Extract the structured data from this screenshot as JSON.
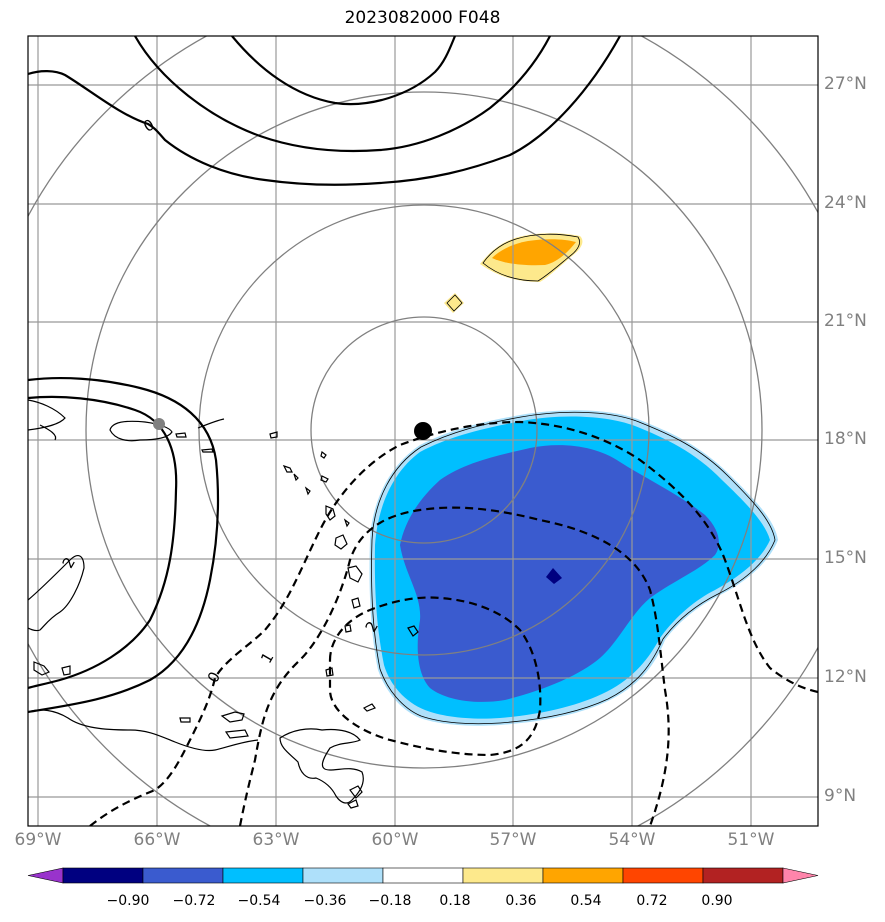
{
  "title": "2023082000 F048",
  "lat_labels": [
    "27°N",
    "24°N",
    "21°N",
    "18°N",
    "15°N",
    "12°N",
    "9°N"
  ],
  "lon_labels": [
    "69°W",
    "66°W",
    "63°W",
    "60°W",
    "57°W",
    "54°W",
    "51°W"
  ],
  "contour_labels": [
    "0",
    "2",
    "1",
    "2",
    "0"
  ],
  "colorbar": {
    "ticks": [
      "−0.90",
      "−0.72",
      "−0.54",
      "−0.36",
      "−0.18",
      "0.18",
      "0.36",
      "0.54",
      "0.72",
      "0.90"
    ],
    "colors": [
      "#9933cc",
      "#000080",
      "#3a5bcf",
      "#00bfff",
      "#aee0fa",
      "#ffffff",
      "#fde98c",
      "#ffa500",
      "#ff4500",
      "#b22222",
      "#ff85ab"
    ]
  },
  "colors": {
    "grid": "#999999",
    "rings": "#808080",
    "center_marker": "#000000",
    "station_marker": "#808080"
  }
}
